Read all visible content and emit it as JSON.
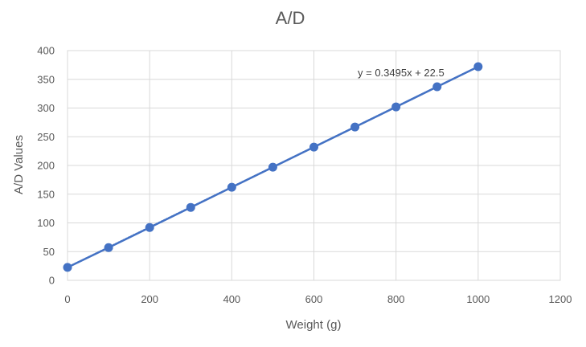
{
  "chart_data": {
    "type": "scatter",
    "title": "A/D",
    "xlabel": "Weight (g)",
    "ylabel": "A/D Values",
    "xlim": [
      0,
      1200
    ],
    "ylim": [
      0,
      400
    ],
    "x_ticks": [
      0,
      200,
      400,
      600,
      800,
      1000,
      1200
    ],
    "y_ticks": [
      0,
      50,
      100,
      150,
      200,
      250,
      300,
      350,
      400
    ],
    "grid": true,
    "legend": "none",
    "series": [
      {
        "x": [
          0,
          100,
          200,
          300,
          400,
          500,
          600,
          700,
          800,
          900,
          1000
        ],
        "y": [
          22.5,
          57,
          92,
          127,
          162,
          197,
          232,
          267,
          302,
          337,
          372
        ],
        "color": "#4472C4"
      }
    ],
    "trendline": {
      "slope": 0.3495,
      "intercept": 22.5,
      "x_range": [
        0,
        1000
      ],
      "color": "#4472C4",
      "equation_text": "y = 0.3495x + 22.5"
    }
  }
}
